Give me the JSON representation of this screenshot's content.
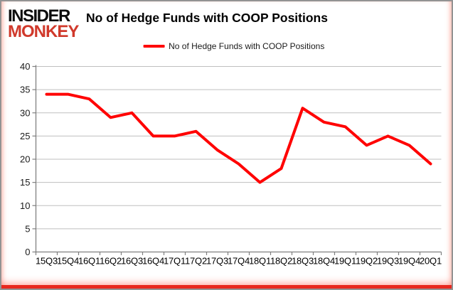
{
  "branding": {
    "logo_line1": "INSIDER",
    "logo_line2": "MONKEY"
  },
  "header": {
    "title": "No of Hedge Funds with COOP Positions"
  },
  "legend": {
    "label": "No of Hedge Funds with COOP Positions",
    "swatch_color": "#ff0000",
    "position": "top-center"
  },
  "colors": {
    "line": "#ff0000",
    "grid": "#bfbfbf",
    "axis": "#808080",
    "tick_text": "#1a1a1a",
    "bottom_bar": "#e8281e"
  },
  "chart_data": {
    "type": "line",
    "title": "No of Hedge Funds with COOP Positions",
    "categories": [
      "15Q3",
      "15Q4",
      "16Q1",
      "16Q2",
      "16Q3",
      "16Q4",
      "17Q1",
      "17Q2",
      "17Q3",
      "17Q4",
      "18Q1",
      "18Q2",
      "18Q3",
      "18Q4",
      "19Q1",
      "19Q2",
      "19Q3",
      "19Q4",
      "20Q1"
    ],
    "series": [
      {
        "name": "No of Hedge Funds with COOP Positions",
        "color": "#ff0000",
        "values": [
          34,
          34,
          33,
          29,
          30,
          25,
          25,
          26,
          22,
          19,
          15,
          18,
          31,
          28,
          27,
          23,
          25,
          23,
          19
        ]
      }
    ],
    "xlabel": "",
    "ylabel": "",
    "ylim": [
      0,
      40
    ],
    "ytick_step": 5,
    "yticks": [
      0,
      5,
      10,
      15,
      20,
      25,
      30,
      35,
      40
    ],
    "grid": true,
    "legend_position": "top-center"
  }
}
